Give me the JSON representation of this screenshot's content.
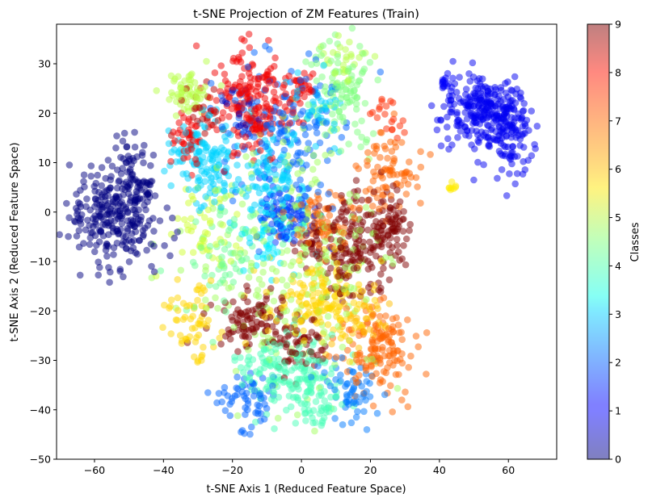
{
  "chart_data": {
    "type": "scatter",
    "title": "t-SNE Projection of ZM Features (Train)",
    "xlabel": "t-SNE Axis 1 (Reduced Feature Space)",
    "ylabel": "t-SNE Axis 2 (Reduced Feature Space)",
    "xlim": [
      -71,
      74
    ],
    "ylim": [
      -50,
      38
    ],
    "xticks": [
      -60,
      -40,
      -20,
      0,
      20,
      40,
      60
    ],
    "yticks": [
      -50,
      -40,
      -30,
      -20,
      -10,
      0,
      10,
      20,
      30
    ],
    "grid": false,
    "colormap": "jet",
    "point_alpha": 0.5,
    "colorbar": {
      "label": "Classes",
      "range": [
        0,
        9
      ],
      "ticks": [
        0,
        1,
        2,
        3,
        4,
        5,
        6,
        7,
        8,
        9
      ]
    },
    "clusters": [
      {
        "class": 0,
        "cx": -54,
        "cy": 0,
        "sx": 6.5,
        "sy": 5.5,
        "n": 260
      },
      {
        "class": 0,
        "cx": -48,
        "cy": 6,
        "sx": 3,
        "sy": 4,
        "n": 60
      },
      {
        "class": 0.5,
        "cx": -18,
        "cy": 20,
        "sx": 3,
        "sy": 3,
        "n": 15
      },
      {
        "class": 1,
        "cx": 53,
        "cy": 20,
        "sx": 6,
        "sy": 3.5,
        "n": 260
      },
      {
        "class": 1,
        "cx": 61,
        "cy": 15,
        "sx": 3,
        "sy": 4,
        "n": 80
      },
      {
        "class": 1.1,
        "cx": 42,
        "cy": 26,
        "sx": 1.5,
        "sy": 1.2,
        "n": 15
      },
      {
        "class": 1.6,
        "cx": -5,
        "cy": 0,
        "sx": 4,
        "sy": 3,
        "n": 90
      },
      {
        "class": 2,
        "cx": -5,
        "cy": 17,
        "sx": 9,
        "sy": 8,
        "n": 160
      },
      {
        "class": 2,
        "cx": -16,
        "cy": -38,
        "sx": 4,
        "sy": 3,
        "n": 60
      },
      {
        "class": 2.2,
        "cx": 15,
        "cy": -36,
        "sx": 5,
        "sy": 3,
        "n": 60
      },
      {
        "class": 3,
        "cx": -28,
        "cy": 10,
        "sx": 5,
        "sy": 4,
        "n": 140
      },
      {
        "class": 3,
        "cx": -8,
        "cy": 7,
        "sx": 6,
        "sy": 5,
        "n": 100
      },
      {
        "class": 3.2,
        "cx": -8,
        "cy": -5,
        "sx": 5,
        "sy": 4,
        "n": 60
      },
      {
        "class": 3,
        "cx": 5,
        "cy": 22,
        "sx": 4,
        "sy": 4,
        "n": 40
      },
      {
        "class": 4,
        "cx": -5,
        "cy": -32,
        "sx": 7,
        "sy": 4,
        "n": 150
      },
      {
        "class": 4,
        "cx": 5,
        "cy": -38,
        "sx": 4,
        "sy": 3,
        "n": 60
      },
      {
        "class": 4.3,
        "cx": -22,
        "cy": -10,
        "sx": 6,
        "sy": 6,
        "n": 60
      },
      {
        "class": 4.5,
        "cx": 12,
        "cy": 24,
        "sx": 5,
        "sy": 5,
        "n": 100
      },
      {
        "class": 5,
        "cx": -33,
        "cy": 24,
        "sx": 3,
        "sy": 2.5,
        "n": 60
      },
      {
        "class": 5,
        "cx": 12,
        "cy": 31,
        "sx": 3,
        "sy": 2,
        "n": 30
      },
      {
        "class": 5.2,
        "cx": -28,
        "cy": -5,
        "sx": 5,
        "sy": 5,
        "n": 50
      },
      {
        "class": 5.8,
        "cx": 43,
        "cy": 5,
        "sx": 1,
        "sy": 0.8,
        "n": 8
      },
      {
        "class": 6,
        "cx": 5,
        "cy": -18,
        "sx": 7,
        "sy": 5,
        "n": 160
      },
      {
        "class": 6,
        "cx": -32,
        "cy": -22,
        "sx": 4,
        "sy": 4,
        "n": 60
      },
      {
        "class": 6.2,
        "cx": 18,
        "cy": -22,
        "sx": 4,
        "sy": 3,
        "n": 40
      },
      {
        "class": 7,
        "cx": 22,
        "cy": -28,
        "sx": 5,
        "sy": 4,
        "n": 140
      },
      {
        "class": 7,
        "cx": 25,
        "cy": 8,
        "sx": 5,
        "sy": 4,
        "n": 80
      },
      {
        "class": 7,
        "cx": 5,
        "cy": -2,
        "sx": 5,
        "sy": 3,
        "n": 60
      },
      {
        "class": 7.5,
        "cx": 25,
        "cy": 20,
        "sx": 3,
        "sy": 2,
        "n": 20
      },
      {
        "class": 8,
        "cx": -14,
        "cy": 22,
        "sx": 5,
        "sy": 5,
        "n": 200
      },
      {
        "class": 8,
        "cx": -33,
        "cy": 15,
        "sx": 2,
        "sy": 3,
        "n": 40
      },
      {
        "class": 8,
        "cx": 0,
        "cy": 25,
        "sx": 2,
        "sy": 1.5,
        "n": 30
      },
      {
        "class": 8.5,
        "cx": -28,
        "cy": 20,
        "sx": 3,
        "sy": 3,
        "n": 25
      },
      {
        "class": 9,
        "cx": 18,
        "cy": -5,
        "sx": 6,
        "sy": 5,
        "n": 150
      },
      {
        "class": 9,
        "cx": -15,
        "cy": -22,
        "sx": 5,
        "sy": 3,
        "n": 100
      },
      {
        "class": 9,
        "cx": 0,
        "cy": -27,
        "sx": 4,
        "sy": 2.5,
        "n": 60
      },
      {
        "class": 9,
        "cx": 27,
        "cy": -2,
        "sx": 3,
        "sy": 3,
        "n": 50
      },
      {
        "class": 9,
        "cx": 12,
        "cy": -13,
        "sx": 2,
        "sy": 3,
        "n": 30
      },
      {
        "class": 9,
        "cx": 3,
        "cy": -6,
        "sx": 3,
        "sy": 2,
        "n": 30
      },
      {
        "class": 4.8,
        "cx": 0,
        "cy": -10,
        "sx": 14,
        "sy": 14,
        "n": 250
      }
    ]
  }
}
